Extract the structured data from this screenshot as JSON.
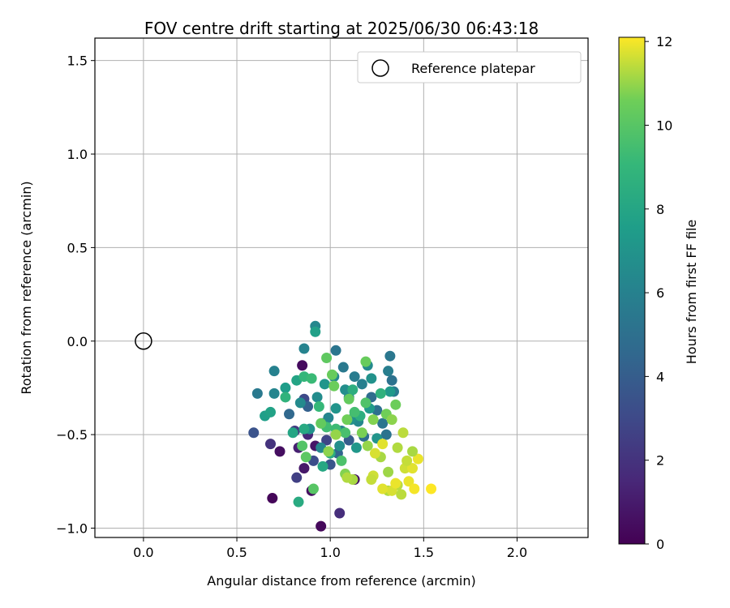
{
  "chart_data": {
    "type": "scatter",
    "title": "FOV centre drift starting at 2025/06/30 06:43:18",
    "xlabel": "Angular distance from reference (arcmin)",
    "ylabel": "Rotation from reference (arcmin)",
    "xlim": [
      -0.26,
      2.38
    ],
    "ylim": [
      -1.05,
      1.62
    ],
    "xticks": [
      0.0,
      0.5,
      1.0,
      1.5,
      2.0
    ],
    "xtick_labels": [
      "0.0",
      "0.5",
      "1.0",
      "1.5",
      "2.0"
    ],
    "yticks": [
      -1.0,
      -0.5,
      0.0,
      0.5,
      1.0,
      1.5
    ],
    "ytick_labels": [
      "−1.0",
      "−0.5",
      "0.0",
      "0.5",
      "1.0",
      "1.5"
    ],
    "grid": true,
    "legend": {
      "position": "top-right",
      "label": "Reference platepar"
    },
    "reference_point": {
      "x": 0.0,
      "y": 0.0
    },
    "colorbar": {
      "label": "Hours from first FF file",
      "range": [
        0,
        12.1
      ],
      "ticks": [
        0,
        2,
        4,
        6,
        8,
        10,
        12
      ],
      "tick_labels": [
        "0",
        "2",
        "4",
        "6",
        "8",
        "10",
        "12"
      ],
      "colormap": "viridis"
    },
    "points": [
      [
        0.69,
        -0.84,
        0.2
      ],
      [
        0.73,
        -0.59,
        0.5
      ],
      [
        0.95,
        -0.99,
        0.3
      ],
      [
        0.9,
        -0.8,
        0.6
      ],
      [
        0.86,
        -0.68,
        0.9
      ],
      [
        1.13,
        -0.74,
        0.7
      ],
      [
        0.85,
        -0.13,
        0.4
      ],
      [
        0.92,
        -0.56,
        0.8
      ],
      [
        0.83,
        -0.57,
        1.2
      ],
      [
        0.68,
        -0.55,
        2.0
      ],
      [
        0.59,
        -0.49,
        3.5
      ],
      [
        0.82,
        -0.73,
        2.6
      ],
      [
        1.05,
        -0.92,
        1.8
      ],
      [
        0.88,
        -0.5,
        1.5
      ],
      [
        0.81,
        -0.48,
        2.3
      ],
      [
        0.98,
        -0.53,
        2.8
      ],
      [
        0.86,
        -0.31,
        3.0
      ],
      [
        0.91,
        -0.64,
        3.2
      ],
      [
        1.0,
        -0.66,
        3.6
      ],
      [
        0.78,
        -0.39,
        4.6
      ],
      [
        0.88,
        -0.35,
        4.2
      ],
      [
        0.96,
        -0.44,
        3.8
      ],
      [
        1.1,
        -0.53,
        4.0
      ],
      [
        1.04,
        -0.6,
        4.4
      ],
      [
        1.22,
        -0.3,
        4.8
      ],
      [
        1.18,
        -0.51,
        4.9
      ],
      [
        1.3,
        -0.5,
        5.2
      ],
      [
        1.32,
        -0.08,
        5.4
      ],
      [
        1.33,
        -0.21,
        5.1
      ],
      [
        1.34,
        -0.27,
        5.6
      ],
      [
        1.31,
        -0.16,
        5.8
      ],
      [
        1.03,
        -0.05,
        5.3
      ],
      [
        1.07,
        -0.14,
        5.5
      ],
      [
        1.13,
        -0.19,
        5.7
      ],
      [
        1.17,
        -0.23,
        5.9
      ],
      [
        1.1,
        -0.3,
        6.1
      ],
      [
        0.99,
        -0.41,
        6.2
      ],
      [
        1.06,
        -0.48,
        6.0
      ],
      [
        0.95,
        -0.57,
        6.3
      ],
      [
        1.15,
        -0.43,
        6.4
      ],
      [
        1.25,
        -0.37,
        5.0
      ],
      [
        1.28,
        -0.44,
        5.3
      ],
      [
        0.7,
        -0.16,
        6.0
      ],
      [
        0.61,
        -0.28,
        5.5
      ],
      [
        0.7,
        -0.28,
        6.2
      ],
      [
        0.86,
        -0.04,
        6.1
      ],
      [
        0.92,
        0.08,
        6.3
      ],
      [
        0.84,
        -0.33,
        6.5
      ],
      [
        0.93,
        -0.3,
        6.6
      ],
      [
        1.02,
        -0.19,
        6.4
      ],
      [
        1.08,
        -0.26,
        6.7
      ],
      [
        1.2,
        -0.13,
        6.5
      ],
      [
        1.22,
        -0.2,
        6.9
      ],
      [
        1.11,
        -0.42,
        6.8
      ],
      [
        1.03,
        -0.36,
        7.0
      ],
      [
        0.97,
        -0.23,
        7.1
      ],
      [
        0.89,
        -0.47,
        6.9
      ],
      [
        1.05,
        -0.56,
        6.7
      ],
      [
        1.14,
        -0.57,
        7.2
      ],
      [
        1.25,
        -0.52,
        7.0
      ],
      [
        1.32,
        -0.27,
        7.3
      ],
      [
        1.21,
        -0.36,
        7.4
      ],
      [
        0.65,
        -0.4,
        7.6
      ],
      [
        0.68,
        -0.38,
        7.8
      ],
      [
        0.76,
        -0.25,
        7.5
      ],
      [
        0.82,
        -0.21,
        7.9
      ],
      [
        0.92,
        0.05,
        7.7
      ],
      [
        0.8,
        -0.49,
        8.0
      ],
      [
        0.86,
        -0.47,
        8.2
      ],
      [
        0.96,
        -0.67,
        8.1
      ],
      [
        1.0,
        -0.6,
        8.4
      ],
      [
        0.83,
        -0.86,
        8.3
      ],
      [
        1.12,
        -0.26,
        8.5
      ],
      [
        1.16,
        -0.4,
        8.6
      ],
      [
        1.27,
        -0.28,
        8.7
      ],
      [
        0.76,
        -0.3,
        8.8
      ],
      [
        0.86,
        -0.19,
        9.0
      ],
      [
        0.9,
        -0.2,
        9.2
      ],
      [
        0.94,
        -0.35,
        9.1
      ],
      [
        0.98,
        -0.46,
        9.4
      ],
      [
        1.03,
        -0.47,
        9.3
      ],
      [
        1.08,
        -0.49,
        9.6
      ],
      [
        1.13,
        -0.38,
        9.5
      ],
      [
        1.19,
        -0.33,
        9.8
      ],
      [
        1.06,
        -0.64,
        9.7
      ],
      [
        0.91,
        -0.79,
        10.0
      ],
      [
        0.85,
        -0.56,
        9.9
      ],
      [
        0.87,
        -0.62,
        10.1
      ],
      [
        0.95,
        -0.44,
        10.3
      ],
      [
        0.98,
        -0.09,
        10.2
      ],
      [
        1.01,
        -0.18,
        10.4
      ],
      [
        1.02,
        -0.24,
        10.5
      ],
      [
        1.09,
        -0.42,
        10.6
      ],
      [
        1.1,
        -0.31,
        10.3
      ],
      [
        1.17,
        -0.49,
        10.7
      ],
      [
        1.19,
        -0.11,
        10.4
      ],
      [
        1.23,
        -0.42,
        10.8
      ],
      [
        1.3,
        -0.39,
        10.6
      ],
      [
        1.33,
        -0.42,
        10.9
      ],
      [
        1.35,
        -0.34,
        10.5
      ],
      [
        1.08,
        -0.71,
        10.8
      ],
      [
        1.2,
        -0.56,
        11.0
      ],
      [
        1.27,
        -0.62,
        11.2
      ],
      [
        1.31,
        -0.7,
        11.1
      ],
      [
        1.36,
        -0.77,
        11.4
      ],
      [
        1.31,
        -0.8,
        11.3
      ],
      [
        1.23,
        -0.72,
        11.6
      ],
      [
        1.22,
        -0.74,
        11.5
      ],
      [
        1.24,
        -0.6,
        11.7
      ],
      [
        1.28,
        -0.55,
        11.8
      ],
      [
        1.42,
        -0.75,
        11.9
      ],
      [
        1.4,
        -0.68,
        11.6
      ],
      [
        1.44,
        -0.68,
        11.8
      ],
      [
        1.45,
        -0.79,
        12.0
      ],
      [
        1.47,
        -0.63,
        11.9
      ],
      [
        1.54,
        -0.79,
        12.1
      ],
      [
        1.33,
        -0.8,
        11.7
      ],
      [
        1.38,
        -0.82,
        11.4
      ],
      [
        1.35,
        -0.76,
        11.9
      ],
      [
        1.44,
        -0.59,
        11.2
      ],
      [
        1.39,
        -0.49,
        11.4
      ],
      [
        1.36,
        -0.57,
        11.3
      ],
      [
        1.41,
        -0.64,
        11.5
      ],
      [
        1.28,
        -0.79,
        11.8
      ],
      [
        0.99,
        -0.59,
        10.9
      ],
      [
        1.03,
        -0.5,
        11.0
      ],
      [
        1.12,
        -0.74,
        11.2
      ],
      [
        1.09,
        -0.73,
        11.3
      ]
    ]
  }
}
